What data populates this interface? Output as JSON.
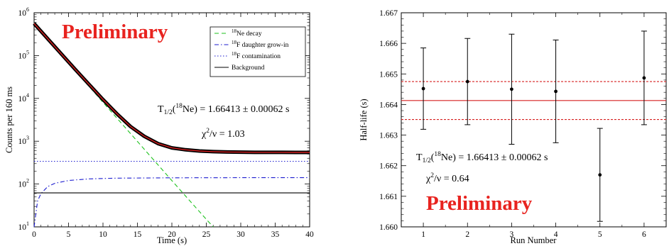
{
  "chart_data": [
    {
      "type": "line",
      "title": "Preliminary",
      "xlabel": "Time (s)",
      "ylabel": "Counts per 160 ms",
      "xlim": [
        0,
        40
      ],
      "ylim": [
        10,
        1000000
      ],
      "y_scale": "log",
      "x_ticks": [
        "0",
        "5",
        "10",
        "15",
        "20",
        "25",
        "30",
        "35",
        "40"
      ],
      "y_ticks": [
        {
          "base": "10",
          "exp": "1"
        },
        {
          "base": "10",
          "exp": "2"
        },
        {
          "base": "10",
          "exp": "3"
        },
        {
          "base": "10",
          "exp": "4"
        },
        {
          "base": "10",
          "exp": "5"
        },
        {
          "base": "10",
          "exp": "6"
        }
      ],
      "legend_position": "top-right",
      "series": [
        {
          "name_pre": "",
          "name_sup": "18",
          "name_post": "Ne decay",
          "style": "dashed",
          "color": "#1ec21e",
          "x": [
            0,
            5,
            10,
            15,
            20,
            25,
            26
          ],
          "y": [
            550000,
            67000,
            8100,
            990,
            120,
            15,
            10
          ]
        },
        {
          "name_pre": "",
          "name_sup": "18",
          "name_post": "F daughter grow-in",
          "style": "dash-dot",
          "color": "#1c1ccf",
          "x": [
            0,
            0.5,
            1,
            2,
            3,
            5,
            8,
            12,
            20,
            30,
            40
          ],
          "y": [
            10,
            40,
            60,
            88,
            104,
            121,
            132,
            137,
            140,
            141,
            141
          ]
        },
        {
          "name_pre": "",
          "name_sup": "18",
          "name_post": "F contamination",
          "style": "dotted",
          "color": "#1c1ccf",
          "x": [
            0,
            40
          ],
          "y": [
            340,
            340
          ]
        },
        {
          "name_pre": "",
          "name_sup": "",
          "name_post": "Background",
          "style": "solid",
          "color": "#000000",
          "x": [
            0,
            40
          ],
          "y": [
            62,
            62
          ]
        },
        {
          "name_pre": "",
          "name_sup": "",
          "name_post": "",
          "style": "data",
          "color": "#000000",
          "x": [
            0,
            2,
            4,
            6,
            8,
            10,
            12,
            14,
            16,
            18,
            20,
            22,
            24,
            26,
            28,
            30,
            32,
            34,
            36,
            38,
            40
          ],
          "y": [
            560000,
            245000,
            107000,
            47000,
            21000,
            9400,
            4400,
            2200,
            1300,
            880,
            700,
            630,
            590,
            570,
            560,
            555,
            550,
            550,
            550,
            548,
            548
          ]
        },
        {
          "name_pre": "",
          "name_sup": "",
          "name_post": "",
          "style": "fit",
          "color": "#d62020",
          "x": [
            0,
            2,
            4,
            6,
            8,
            10,
            12,
            14,
            16,
            18,
            20,
            22,
            24,
            26,
            28,
            30,
            32,
            34,
            36,
            38,
            40
          ],
          "y": [
            560000,
            245000,
            107000,
            47000,
            21000,
            9400,
            4400,
            2200,
            1300,
            880,
            700,
            630,
            590,
            570,
            560,
            555,
            550,
            550,
            550,
            548,
            548
          ]
        }
      ],
      "annotations": {
        "halflife_main": "T",
        "halflife_sub": "1/2",
        "halflife_open": "(",
        "halflife_sup": "18",
        "halflife_rest": "Ne) = 1.66413 ± 0.00062 s",
        "chi_main": "χ",
        "chi_sup": "2",
        "chi_rest": "/ν = 1.03"
      }
    },
    {
      "type": "scatter",
      "title": "Preliminary",
      "xlabel": "Run Number",
      "ylabel": "Half-life (s)",
      "xlim": [
        0.5,
        6.5
      ],
      "ylim": [
        1.66,
        1.667
      ],
      "x_ticks": [
        "1",
        "2",
        "3",
        "4",
        "5",
        "6"
      ],
      "y_ticks": [
        "1.660",
        "1.661",
        "1.662",
        "1.663",
        "1.664",
        "1.665",
        "1.666",
        "1.667"
      ],
      "x": [
        1,
        2,
        3,
        4,
        5,
        6
      ],
      "y": [
        1.66452,
        1.66475,
        1.6645,
        1.66443,
        1.6617,
        1.66487
      ],
      "yerr": [
        0.00133,
        0.00141,
        0.0018,
        0.00168,
        0.00152,
        0.00153
      ],
      "mean": 1.66413,
      "mean_band": [
        1.66351,
        1.66475
      ],
      "line_color": "#d62020",
      "annotations": {
        "halflife_main": "T",
        "halflife_sub": "1/2",
        "halflife_open": "(",
        "halflife_sup": "18",
        "halflife_rest": "Ne) = 1.66413 ± 0.00062 s",
        "chi_main": "χ",
        "chi_sup": "2",
        "chi_rest": "/ν = 0.64"
      }
    }
  ]
}
